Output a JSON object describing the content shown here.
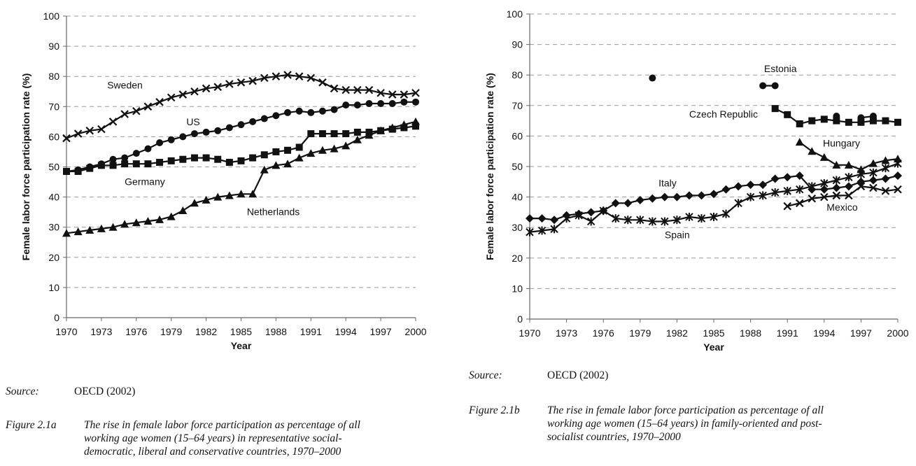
{
  "chart_data": [
    {
      "id": "fig-2-1a",
      "type": "line",
      "title": "",
      "xlabel": "Year",
      "ylabel": "Female labor force participation rate (%)",
      "xlim": [
        1970,
        2000
      ],
      "ylim": [
        0,
        100
      ],
      "x_ticks": [
        "1970",
        "1973",
        "1976",
        "1979",
        "1982",
        "1985",
        "1988",
        "1991",
        "1994",
        "1997",
        "2000"
      ],
      "y_ticks": [
        "0",
        "10",
        "20",
        "30",
        "40",
        "50",
        "60",
        "70",
        "80",
        "90",
        "100"
      ],
      "grid": "horizontal-dashed",
      "legend": "inline-labels",
      "x_start": 1970,
      "series": [
        {
          "name": "Sweden",
          "marker": "x",
          "values": [
            59.5,
            61,
            62,
            62.5,
            65,
            67.5,
            68.5,
            70,
            71.5,
            73,
            74,
            75,
            76,
            76.5,
            77.5,
            78,
            78.5,
            79.5,
            80,
            80.5,
            80,
            79.5,
            78,
            76,
            75.5,
            75.5,
            75.5,
            74.5,
            74,
            74,
            74.5
          ]
        },
        {
          "name": "US",
          "marker": "circle",
          "values": [
            48.5,
            49,
            50,
            51,
            52.5,
            53,
            54.5,
            56,
            58,
            59,
            60,
            61,
            61.5,
            62,
            63,
            64,
            65,
            66,
            67,
            68,
            68.5,
            68,
            68.5,
            69,
            70.5,
            70.5,
            71,
            71,
            71,
            71.5,
            71.5
          ]
        },
        {
          "name": "Germany",
          "marker": "square",
          "values": [
            48.5,
            48.5,
            49.5,
            50.5,
            50.5,
            51,
            51,
            51,
            51.5,
            52,
            52.5,
            53,
            53,
            52.5,
            51.5,
            52,
            53,
            54,
            55,
            55.5,
            56.5,
            61,
            61,
            61,
            61,
            61.5,
            61.5,
            62,
            62.5,
            63,
            63.5
          ]
        },
        {
          "name": "Netherlands",
          "marker": "triangle",
          "values": [
            28,
            28.5,
            29,
            29.5,
            30,
            31,
            31.5,
            32,
            32.5,
            33.5,
            35.5,
            38,
            39,
            40,
            40.5,
            41,
            41,
            49,
            50.5,
            51,
            53,
            54.5,
            55.5,
            56,
            57,
            59,
            60.5,
            62,
            63,
            64,
            65
          ]
        }
      ],
      "annotations": [
        {
          "text": "Sweden",
          "x": 1973.5,
          "y": 76
        },
        {
          "text": "US",
          "x": 1980.3,
          "y": 63.8
        },
        {
          "text": "Germany",
          "x": 1975,
          "y": 44
        },
        {
          "text": "Netherlands",
          "x": 1985.5,
          "y": 34
        }
      ]
    },
    {
      "id": "fig-2-1b",
      "type": "line",
      "title": "",
      "xlabel": "Year",
      "ylabel": "Female labor force participation rate (%)",
      "xlim": [
        1970,
        2000
      ],
      "ylim": [
        0,
        100
      ],
      "x_ticks": [
        "1970",
        "1973",
        "1976",
        "1979",
        "1982",
        "1985",
        "1988",
        "1991",
        "1994",
        "1997",
        "2000"
      ],
      "y_ticks": [
        "0",
        "10",
        "20",
        "30",
        "40",
        "50",
        "60",
        "70",
        "80",
        "90",
        "100"
      ],
      "grid": "horizontal-dashed",
      "legend": "inline-labels",
      "series": [
        {
          "name": "Estonia",
          "marker": "circle",
          "x": [
            1980,
            1989,
            1990,
            1995,
            1997,
            1998
          ],
          "values": [
            79,
            76.5,
            76.5,
            66.5,
            66,
            66.5
          ],
          "segments": [
            [
              1980
            ],
            [
              1989,
              1990
            ],
            [
              1995
            ],
            [
              1997,
              1998
            ]
          ]
        },
        {
          "name": "Czech Republic",
          "marker": "square",
          "x": [
            1990,
            1991,
            1992,
            1993,
            1994,
            1995,
            1996,
            1997,
            1998,
            1999,
            2000
          ],
          "values": [
            69,
            67,
            64,
            65,
            65.5,
            65,
            64.5,
            64.5,
            65,
            65,
            64.5
          ]
        },
        {
          "name": "Hungary",
          "marker": "triangle",
          "x": [
            1992,
            1993,
            1994,
            1995,
            1996,
            1997,
            1998,
            1999,
            2000
          ],
          "values": [
            58,
            55,
            53,
            50.5,
            50.5,
            49,
            51,
            52,
            52.5
          ]
        },
        {
          "name": "Italy",
          "marker": "diamond",
          "x_start": 1970,
          "values": [
            33,
            33,
            32.5,
            34,
            34.5,
            35,
            35.5,
            38,
            38,
            39,
            39.5,
            40,
            40,
            40.5,
            40.5,
            41,
            42.5,
            43.5,
            44,
            44,
            46,
            46.5,
            47,
            42.5,
            42.5,
            43,
            43.5,
            45,
            45.5,
            46,
            47
          ]
        },
        {
          "name": "Spain",
          "marker": "asterisk",
          "x_start": 1970,
          "values": [
            28.5,
            29,
            29.5,
            33,
            34,
            32,
            35.5,
            33,
            32.5,
            32.5,
            32,
            32,
            32.5,
            33.5,
            33,
            33.5,
            34.5,
            38,
            40,
            40.5,
            41.5,
            42,
            42.5,
            43.5,
            44.5,
            45.5,
            46.5,
            47.5,
            48,
            49.5,
            51
          ]
        },
        {
          "name": "Mexico",
          "marker": "x",
          "x": [
            1991,
            1992,
            1993,
            1994,
            1995,
            1996,
            1997,
            1998,
            1999,
            2000
          ],
          "values": [
            37,
            38,
            39.5,
            40,
            40.5,
            40.5,
            43.5,
            43,
            42,
            42.5
          ]
        }
      ],
      "annotations": [
        {
          "text": "Estonia",
          "x": 1989.1,
          "y": 81
        },
        {
          "text": "Czech Republic",
          "x": 1983,
          "y": 66
        },
        {
          "text": "Hungary",
          "x": 1993.9,
          "y": 56.5
        },
        {
          "text": "Italy",
          "x": 1980.5,
          "y": 43.5
        },
        {
          "text": "Spain",
          "x": 1981,
          "y": 26.5
        },
        {
          "text": "Mexico",
          "x": 1994.2,
          "y": 35.5
        }
      ]
    }
  ],
  "captions": {
    "left": {
      "source_label": "Source:",
      "source_value": "OECD (2002)",
      "figure_label": "Figure 2.1a",
      "figure_lines": [
        "The rise in female labor force participation as percentage of all",
        "working age women (15–64 years) in representative social-",
        "democratic, liberal and conservative countries, 1970–2000"
      ]
    },
    "right": {
      "source_label": "Source:",
      "source_value": "OECD (2002)",
      "figure_label": "Figure 2.1b",
      "figure_lines": [
        "The rise in female labor force participation as percentage of all",
        "working age women (15–64 years) in family-oriented and post-",
        "socialist countries, 1970–2000"
      ]
    }
  }
}
